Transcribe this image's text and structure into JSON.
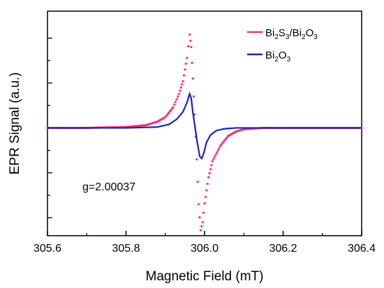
{
  "chart_data": {
    "type": "line",
    "xlabel": "Magnetic Field (mT)",
    "ylabel": "EPR Signal (a.u.)",
    "xlim": [
      305.6,
      306.4
    ],
    "ylim": [
      -1.2,
      1.3
    ],
    "x_ticks": [
      "305.6",
      "305.8",
      "306.0",
      "306.2",
      "306.4"
    ],
    "y_ticks_labeled": false,
    "grid": false,
    "legend_position": "top-right",
    "annotation": "g=2.00037",
    "series": [
      {
        "name": "Bi2S3/Bi2O3",
        "legend": {
          "base1": "Bi",
          "sub1": "2",
          "base2": "S",
          "sub2": "3",
          "sep": "/Bi",
          "sub3": "2",
          "base3": "O",
          "sub4": "3"
        },
        "color": "#ff2d7a",
        "style": "dotted",
        "points": [
          [
            305.6,
            0.0
          ],
          [
            305.7,
            0.0
          ],
          [
            305.8,
            0.01
          ],
          [
            305.85,
            0.03
          ],
          [
            305.88,
            0.07
          ],
          [
            305.9,
            0.12
          ],
          [
            305.92,
            0.23
          ],
          [
            305.935,
            0.38
          ],
          [
            305.945,
            0.52
          ],
          [
            305.955,
            0.78
          ],
          [
            305.962,
            1.04
          ],
          [
            305.966,
            0.9
          ],
          [
            305.97,
            0.55
          ],
          [
            305.975,
            0.15
          ],
          [
            305.98,
            -0.35
          ],
          [
            305.985,
            -0.85
          ],
          [
            305.99,
            -1.14
          ],
          [
            305.995,
            -1.05
          ],
          [
            306.0,
            -0.84
          ],
          [
            306.01,
            -0.55
          ],
          [
            306.02,
            -0.37
          ],
          [
            306.04,
            -0.2
          ],
          [
            306.06,
            -0.09
          ],
          [
            306.08,
            -0.04
          ],
          [
            306.1,
            -0.015
          ],
          [
            306.15,
            0.0
          ],
          [
            306.4,
            0.0
          ]
        ]
      },
      {
        "name": "Bi2O3",
        "legend": {
          "base1": "Bi",
          "sub1": "2",
          "base2": "O",
          "sub2": "3"
        },
        "color": "#1f1fb8",
        "style": "solid",
        "points": [
          [
            305.6,
            0.0
          ],
          [
            305.8,
            0.0
          ],
          [
            305.88,
            0.01
          ],
          [
            305.91,
            0.04
          ],
          [
            305.93,
            0.1
          ],
          [
            305.945,
            0.18
          ],
          [
            305.955,
            0.28
          ],
          [
            305.962,
            0.38
          ],
          [
            305.966,
            0.33
          ],
          [
            305.97,
            0.18
          ],
          [
            305.976,
            0.0
          ],
          [
            305.982,
            -0.18
          ],
          [
            305.988,
            -0.32
          ],
          [
            305.993,
            -0.34
          ],
          [
            305.998,
            -0.28
          ],
          [
            306.005,
            -0.16
          ],
          [
            306.015,
            -0.08
          ],
          [
            306.03,
            -0.03
          ],
          [
            306.05,
            -0.01
          ],
          [
            306.08,
            0.0
          ],
          [
            306.4,
            0.0
          ]
        ]
      }
    ]
  }
}
